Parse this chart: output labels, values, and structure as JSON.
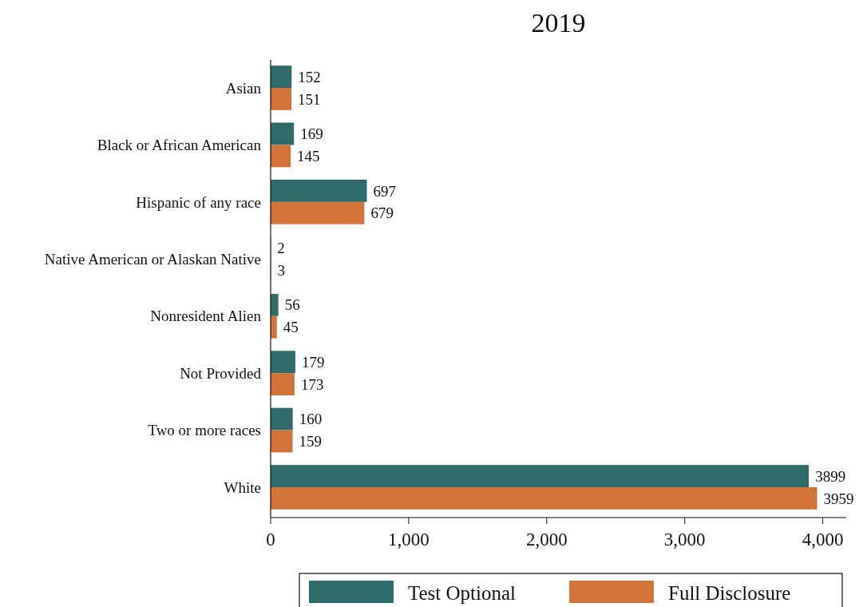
{
  "chart_data": {
    "type": "bar",
    "orientation": "horizontal",
    "title": "2019",
    "categories": [
      "Asian",
      "Black or African American",
      "Hispanic of any race",
      "Native American or Alaskan Native",
      "Nonresident Alien",
      "Not Provided",
      "Two or more races",
      "White"
    ],
    "series": [
      {
        "name": "Test Optional",
        "color": "#2f6b6b",
        "values": [
          152,
          169,
          697,
          2,
          56,
          179,
          160,
          3899
        ]
      },
      {
        "name": "Full Disclosure",
        "color": "#d2733a",
        "values": [
          151,
          145,
          679,
          3,
          45,
          173,
          159,
          3959
        ]
      }
    ],
    "xlim": [
      0,
      4170
    ],
    "xticks": [
      0,
      {
        "value": 1000,
        "label": "1,000"
      },
      {
        "value": 2000,
        "label": "2,000"
      },
      {
        "value": 3000,
        "label": "3,000"
      },
      {
        "value": 4000,
        "label": "4,000"
      }
    ],
    "data_labels": true,
    "legend": "bottom",
    "grid": false
  }
}
